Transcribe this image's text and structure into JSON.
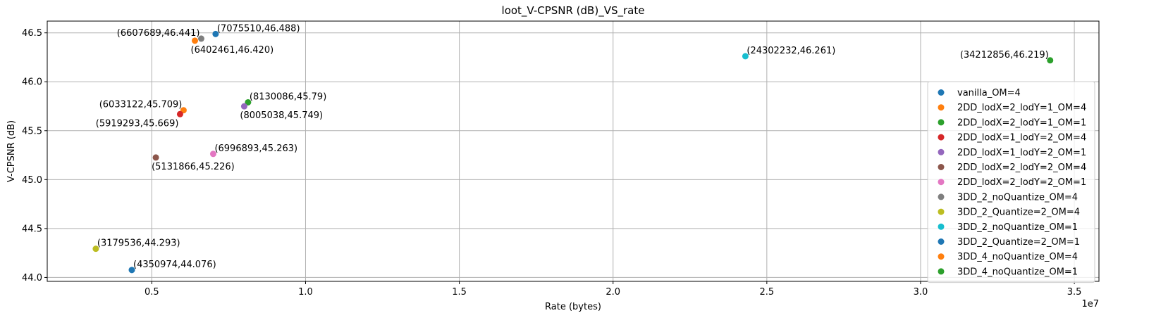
{
  "chart_data": {
    "type": "scatter",
    "title": "loot_V-CPSNR (dB)_VS_rate",
    "xlabel": "Rate (bytes)",
    "ylabel": "V-CPSNR (dB)",
    "x_offset_label": "1e7",
    "x_scale": 10000000,
    "xlim": [
      1600000,
      35800000
    ],
    "ylim": [
      43.96,
      46.62
    ],
    "x_ticks": [
      {
        "value": 5000000,
        "label": "0.5"
      },
      {
        "value": 10000000,
        "label": "1.0"
      },
      {
        "value": 15000000,
        "label": "1.5"
      },
      {
        "value": 20000000,
        "label": "2.0"
      },
      {
        "value": 25000000,
        "label": "2.5"
      },
      {
        "value": 30000000,
        "label": "3.0"
      },
      {
        "value": 35000000,
        "label": "3.5"
      }
    ],
    "y_ticks": [
      {
        "value": 44.0,
        "label": "44.0"
      },
      {
        "value": 44.5,
        "label": "44.5"
      },
      {
        "value": 45.0,
        "label": "45.0"
      },
      {
        "value": 45.5,
        "label": "45.5"
      },
      {
        "value": 46.0,
        "label": "46.0"
      },
      {
        "value": 46.5,
        "label": "46.5"
      }
    ],
    "grid": true,
    "legend_position": "right",
    "series": [
      {
        "name": "vanilla_OM=4",
        "color": "#1f77b4",
        "x": 7075510,
        "y": 46.488,
        "label": "(7075510,46.488)",
        "label_side": "above-right"
      },
      {
        "name": "2DD_lodX=2_lodY=1_OM=4",
        "color": "#ff7f0e",
        "x": 6033122,
        "y": 45.709,
        "label": "(6033122,45.709)",
        "label_side": "above-left"
      },
      {
        "name": "2DD_lodX=2_lodY=1_OM=1",
        "color": "#2ca02c",
        "x": 8130086,
        "y": 45.79,
        "label": "(8130086,45.79)",
        "label_side": "above-right"
      },
      {
        "name": "2DD_lodX=1_lodY=2_OM=4",
        "color": "#d62728",
        "x": 5919293,
        "y": 45.669,
        "label": "(5919293,45.669)",
        "label_side": "below-left"
      },
      {
        "name": "2DD_lodX=1_lodY=2_OM=1",
        "color": "#9467bd",
        "x": 8005038,
        "y": 45.749,
        "label": "(8005038,45.749)",
        "label_side": "below-right"
      },
      {
        "name": "2DD_lodX=2_lodY=2_OM=4",
        "color": "#8c564b",
        "x": 5131866,
        "y": 45.226,
        "label": "(5131866,45.226)",
        "label_side": "below-right"
      },
      {
        "name": "2DD_lodX=2_lodY=2_OM=1",
        "color": "#e377c2",
        "x": 6996893,
        "y": 45.263,
        "label": "(6996893,45.263)",
        "label_side": "above-right"
      },
      {
        "name": "3DD_2_noQuantize_OM=4",
        "color": "#7f7f7f",
        "x": 6607689,
        "y": 46.441,
        "label": "(6607689,46.441)",
        "label_side": "above-left"
      },
      {
        "name": "3DD_2_Quantize=2_OM=4",
        "color": "#bcbd22",
        "x": 3179536,
        "y": 44.293,
        "label": "(3179536,44.293)",
        "label_side": "above-right"
      },
      {
        "name": "3DD_2_noQuantize_OM=1",
        "color": "#17becf",
        "x": 24302232,
        "y": 46.261,
        "label": "(24302232,46.261)",
        "label_side": "above-right"
      },
      {
        "name": "3DD_2_Quantize=2_OM=1",
        "color": "#1f77b4",
        "x": 4350974,
        "y": 44.076,
        "label": "(4350974,44.076)",
        "label_side": "above-right"
      },
      {
        "name": "3DD_4_noQuantize_OM=4",
        "color": "#ff7f0e",
        "x": 6402461,
        "y": 46.42,
        "label": "(6402461,46.420)",
        "label_side": "below-right"
      },
      {
        "name": "3DD_4_noQuantize_OM=1",
        "color": "#2ca02c",
        "x": 34212856,
        "y": 46.219,
        "label": "(34212856,46.219)",
        "label_side": "above-left"
      }
    ]
  }
}
